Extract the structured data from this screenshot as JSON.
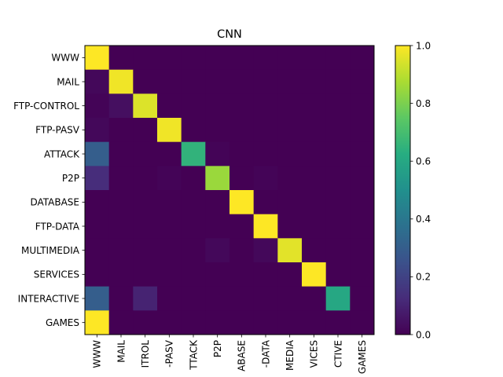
{
  "chart_data": {
    "type": "heatmap",
    "title": "CNN",
    "xlabel": "",
    "ylabel": "",
    "row_labels": [
      "WWW",
      "MAIL",
      "FTP-CONTROL",
      "FTP-PASV",
      "ATTACK",
      "P2P",
      "DATABASE",
      "FTP-DATA",
      "MULTIMEDIA",
      "SERVICES",
      "INTERACTIVE",
      "GAMES"
    ],
    "col_labels": [
      "WWW",
      "MAIL",
      "FTP-CONTROL",
      "FTP-PASV",
      "ATTACK",
      "P2P",
      "DATABASE",
      "FTP-DATA",
      "MULTIMEDIA",
      "SERVICES",
      "INTERACTIVE",
      "GAMES"
    ],
    "col_tick_text": [
      "WWW",
      "MAIL",
      "ITROL",
      "-PASV",
      "TTACK",
      "P2P",
      "ABASE",
      "-DATA",
      "MEDIA",
      "VICES",
      "CTIVE",
      "GAMES"
    ],
    "values": [
      [
        1.0,
        0.0,
        0.0,
        0.0,
        0.0,
        0.0,
        0.0,
        0.0,
        0.0,
        0.0,
        0.0,
        0.0
      ],
      [
        0.02,
        0.98,
        0.0,
        0.0,
        0.0,
        0.0,
        0.0,
        0.0,
        0.0,
        0.0,
        0.0,
        0.0
      ],
      [
        0.01,
        0.04,
        0.95,
        0.0,
        0.0,
        0.0,
        0.0,
        0.0,
        0.0,
        0.0,
        0.0,
        0.0
      ],
      [
        0.02,
        0.0,
        0.0,
        0.98,
        0.0,
        0.0,
        0.0,
        0.0,
        0.0,
        0.0,
        0.0,
        0.0
      ],
      [
        0.3,
        0.0,
        0.0,
        0.0,
        0.65,
        0.01,
        0.0,
        0.0,
        0.0,
        0.0,
        0.0,
        0.0
      ],
      [
        0.13,
        0.0,
        0.0,
        0.01,
        0.0,
        0.85,
        0.0,
        0.01,
        0.0,
        0.0,
        0.0,
        0.0
      ],
      [
        0.0,
        0.0,
        0.0,
        0.0,
        0.0,
        0.0,
        1.0,
        0.0,
        0.0,
        0.0,
        0.0,
        0.0
      ],
      [
        0.0,
        0.0,
        0.0,
        0.0,
        0.0,
        0.0,
        0.0,
        1.0,
        0.0,
        0.0,
        0.0,
        0.0
      ],
      [
        0.0,
        0.0,
        0.0,
        0.0,
        0.0,
        0.02,
        0.0,
        0.02,
        0.96,
        0.0,
        0.0,
        0.0
      ],
      [
        0.0,
        0.0,
        0.0,
        0.0,
        0.0,
        0.0,
        0.0,
        0.0,
        0.0,
        1.0,
        0.0,
        0.0
      ],
      [
        0.3,
        0.0,
        0.1,
        0.0,
        0.0,
        0.0,
        0.0,
        0.0,
        0.0,
        0.0,
        0.6,
        0.0
      ],
      [
        1.0,
        0.0,
        0.0,
        0.0,
        0.0,
        0.0,
        0.0,
        0.0,
        0.0,
        0.0,
        0.0,
        0.0
      ]
    ],
    "vmin": 0.0,
    "vmax": 1.0,
    "colormap": "viridis",
    "colorbar": {
      "ticks": [
        0.0,
        0.2,
        0.4,
        0.6,
        0.8,
        1.0
      ],
      "tick_labels": [
        "0.0",
        "0.2",
        "0.4",
        "0.6",
        "0.8",
        "1.0"
      ],
      "placement": "right"
    },
    "grid": false
  }
}
